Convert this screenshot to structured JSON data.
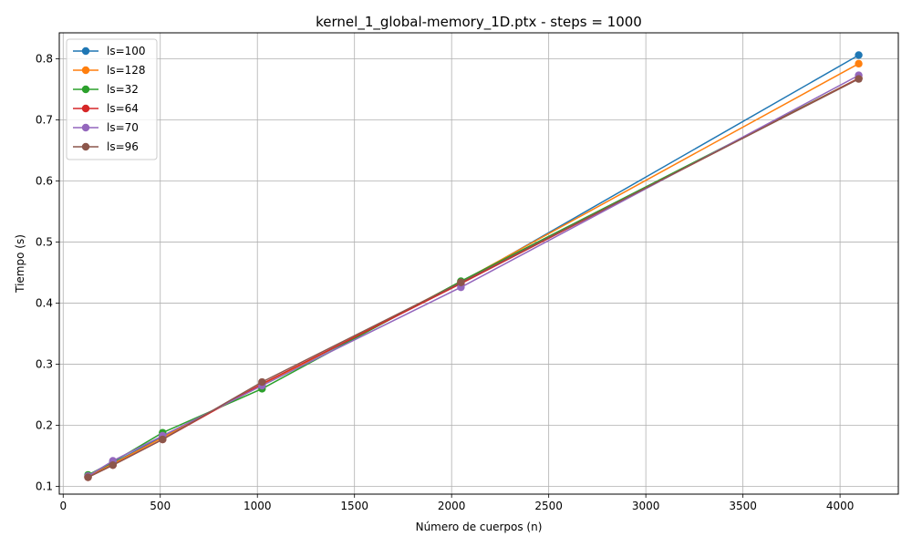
{
  "chart_data": {
    "type": "line",
    "title": "kernel_1_global-memory_1D.ptx - steps = 1000",
    "xlabel": "Número de cuerpos (n)",
    "ylabel": "Tiempo (s)",
    "xlim": [
      -20,
      4300
    ],
    "ylim": [
      0.0875,
      0.8425
    ],
    "xticks": [
      0,
      500,
      1000,
      1500,
      2000,
      2500,
      3000,
      3500,
      4000
    ],
    "yticks": [
      0.1,
      0.2,
      0.3,
      0.4,
      0.5,
      0.6,
      0.7,
      0.8
    ],
    "x": [
      128,
      256,
      512,
      1024,
      2048,
      4096
    ],
    "grid": true,
    "legend_position": "upper-left",
    "marker": "circle",
    "series": [
      {
        "name": "ls=100",
        "color": "#1f77b4",
        "values": [
          0.117,
          0.138,
          0.182,
          0.266,
          0.433,
          0.806
        ]
      },
      {
        "name": "ls=128",
        "color": "#ff7f0e",
        "values": [
          0.116,
          0.137,
          0.18,
          0.266,
          0.435,
          0.792
        ]
      },
      {
        "name": "ls=32",
        "color": "#2ca02c",
        "values": [
          0.119,
          0.14,
          0.188,
          0.26,
          0.436,
          0.768
        ]
      },
      {
        "name": "ls=64",
        "color": "#d62728",
        "values": [
          0.115,
          0.135,
          0.177,
          0.268,
          0.432,
          0.768
        ]
      },
      {
        "name": "ls=70",
        "color": "#9467bd",
        "values": [
          0.117,
          0.142,
          0.183,
          0.265,
          0.426,
          0.773
        ]
      },
      {
        "name": "ls=96",
        "color": "#8c564b",
        "values": [
          0.115,
          0.135,
          0.177,
          0.271,
          0.434,
          0.767
        ]
      }
    ]
  }
}
